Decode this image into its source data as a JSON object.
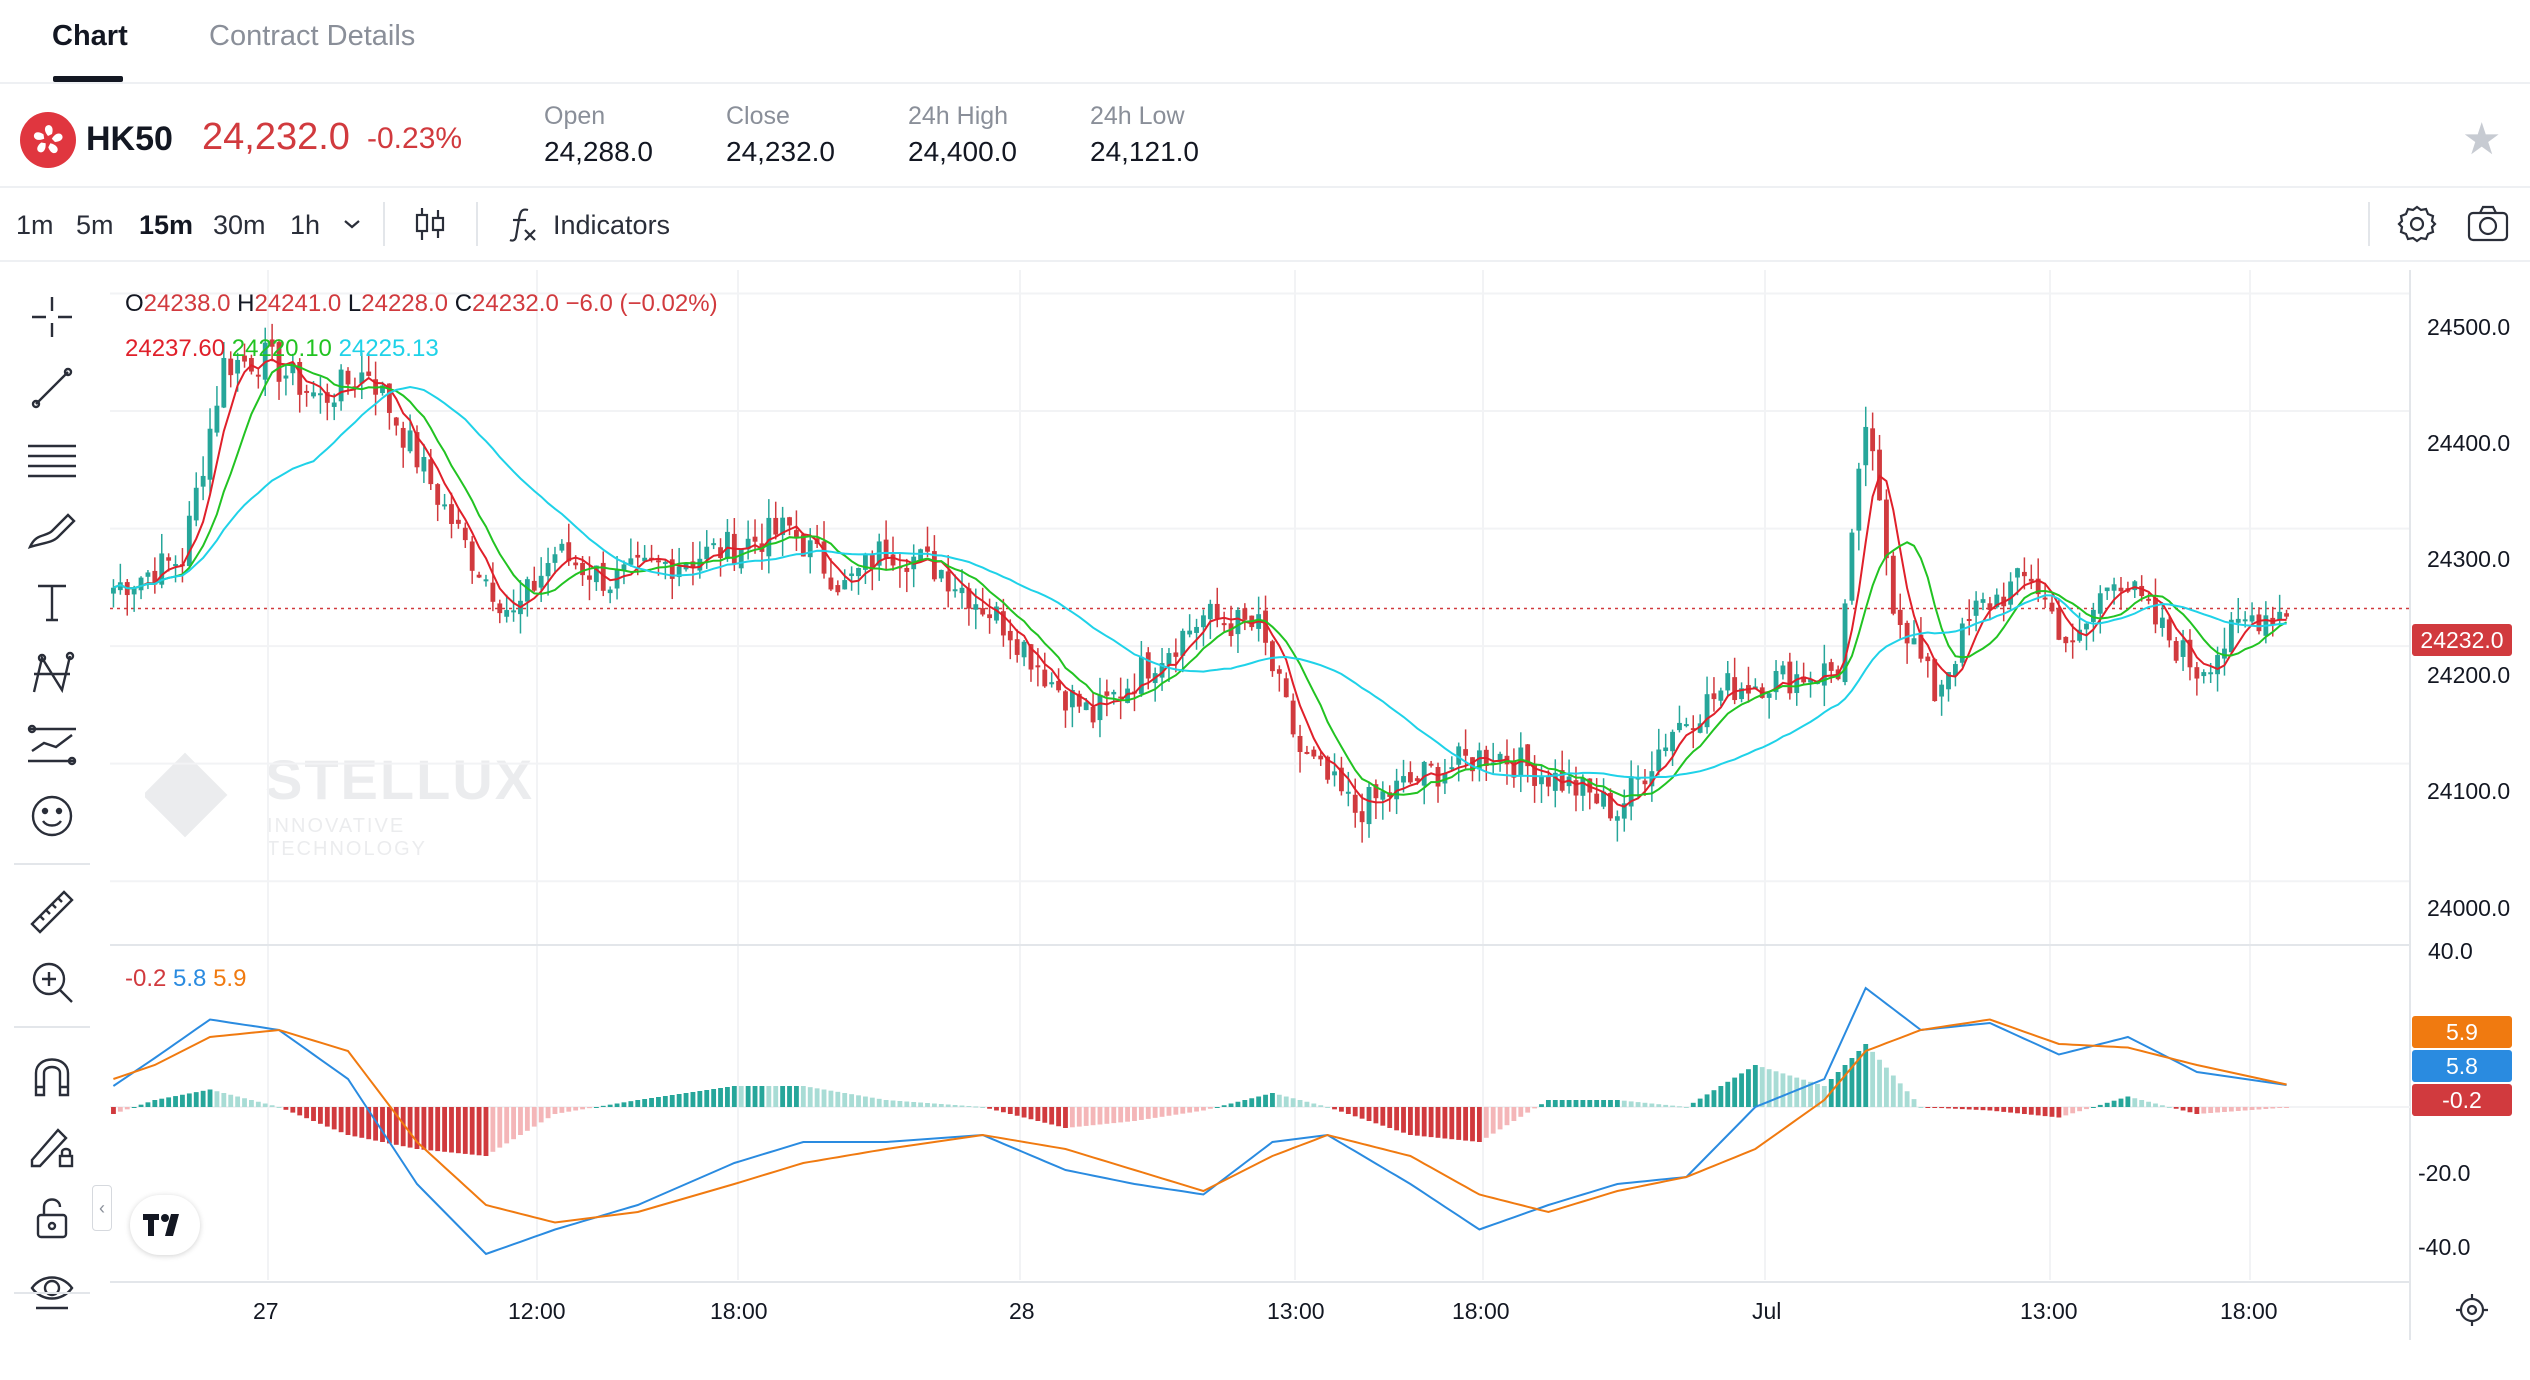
{
  "tabs": [
    {
      "label": "Chart",
      "active": true
    },
    {
      "label": "Contract Details",
      "active": false
    }
  ],
  "ticker": {
    "symbol": "HK50",
    "price": "24,232.0",
    "change": "-0.23%",
    "flag_icon": "hong-kong-flag-icon",
    "price_color": "#d13a3e",
    "stats": [
      {
        "label": "Open",
        "value": "24,288.0"
      },
      {
        "label": "Close",
        "value": "24,232.0"
      },
      {
        "label": "24h High",
        "value": "24,400.0"
      },
      {
        "label": "24h Low",
        "value": "24,121.0"
      }
    ]
  },
  "toolbar": {
    "timeframes": [
      "1m",
      "5m",
      "15m",
      "30m",
      "1h"
    ],
    "active_timeframe": "15m",
    "indicators_label": "Indicators",
    "icons": [
      "chevron-down-icon",
      "candlestick-icon",
      "function-icon",
      "settings-icon",
      "camera-icon"
    ]
  },
  "left_tools": [
    "crosshair-icon",
    "trend-line-icon",
    "horizontal-lines-icon",
    "brush-icon",
    "text-icon",
    "pattern-icon",
    "forecast-icon",
    "emoji-icon",
    "ruler-icon",
    "zoom-in-icon",
    "magnet-icon",
    "pencil-lock-icon",
    "unlock-icon",
    "eye-icon"
  ],
  "legend": {
    "ohlc": [
      {
        "key": "O",
        "value": "24238.0"
      },
      {
        "key": "H",
        "value": "24241.0"
      },
      {
        "key": "L",
        "value": "24228.0"
      },
      {
        "key": "C",
        "value": "24232.0"
      }
    ],
    "change": "−6.0 (−0.02%)",
    "ma": [
      "24237.60",
      "24220.10",
      "24225.13"
    ],
    "macd": [
      "-0.2",
      "5.8",
      "5.9"
    ]
  },
  "price_axis": {
    "labels": [
      "24500.0",
      "24400.0",
      "24300.0",
      "24200.0",
      "24100.0",
      "24000.0"
    ],
    "current_tag": "24232.0",
    "current_tag_color": "#d13a3e"
  },
  "macd_axis": {
    "labels": [
      "40.0",
      "-20.0",
      "-40.0"
    ],
    "tags": [
      {
        "value": "5.9",
        "color": "#f07a10"
      },
      {
        "value": "5.8",
        "color": "#2a8be0"
      },
      {
        "value": "-0.2",
        "color": "#d13a3e"
      }
    ]
  },
  "time_axis": [
    "27",
    "12:00",
    "18:00",
    "28",
    "13:00",
    "18:00",
    "Jul",
    "13:00",
    "18:00"
  ],
  "watermark": {
    "brand": "STELLUX",
    "tagline": "INNOVATIVE TECHNOLOGY"
  },
  "colors": {
    "up": "#26a69a",
    "down": "#d13a3e",
    "ma1": "#e0202a",
    "ma2": "#22c322",
    "ma3": "#1fd2e8",
    "dif": "#2a8be0",
    "dea": "#f07a10"
  },
  "chart_data": {
    "type": "candlestick",
    "price_range": [
      23950,
      24520
    ],
    "current_price": 24232.0,
    "anchors": [
      [
        0,
        24250
      ],
      [
        10,
        24275
      ],
      [
        16,
        24440
      ],
      [
        22,
        24445
      ],
      [
        30,
        24410
      ],
      [
        37,
        24435
      ],
      [
        44,
        24360
      ],
      [
        52,
        24275
      ],
      [
        58,
        24225
      ],
      [
        64,
        24280
      ],
      [
        72,
        24255
      ],
      [
        80,
        24270
      ],
      [
        90,
        24285
      ],
      [
        98,
        24300
      ],
      [
        106,
        24250
      ],
      [
        112,
        24285
      ],
      [
        120,
        24265
      ],
      [
        130,
        24215
      ],
      [
        136,
        24170
      ],
      [
        142,
        24140
      ],
      [
        150,
        24185
      ],
      [
        158,
        24225
      ],
      [
        166,
        24215
      ],
      [
        172,
        24110
      ],
      [
        180,
        24060
      ],
      [
        190,
        24090
      ],
      [
        200,
        24110
      ],
      [
        210,
        24085
      ],
      [
        218,
        24060
      ],
      [
        226,
        24130
      ],
      [
        234,
        24165
      ],
      [
        244,
        24175
      ],
      [
        250,
        24180
      ],
      [
        254,
        24390
      ],
      [
        258,
        24240
      ],
      [
        264,
        24160
      ],
      [
        270,
        24230
      ],
      [
        278,
        24260
      ],
      [
        284,
        24195
      ],
      [
        290,
        24265
      ],
      [
        296,
        24220
      ],
      [
        302,
        24180
      ],
      [
        310,
        24225
      ],
      [
        316,
        24232
      ]
    ],
    "candle_count": 316,
    "macd_range": [
      -48,
      42
    ],
    "macd_anchors": [
      [
        0,
        6,
        8
      ],
      [
        6,
        14,
        12
      ],
      [
        14,
        25,
        20
      ],
      [
        24,
        22,
        22
      ],
      [
        34,
        8,
        16
      ],
      [
        44,
        -22,
        -10
      ],
      [
        54,
        -42,
        -28
      ],
      [
        64,
        -35,
        -33
      ],
      [
        76,
        -28,
        -30
      ],
      [
        90,
        -16,
        -22
      ],
      [
        100,
        -10,
        -16
      ],
      [
        112,
        -10,
        -12
      ],
      [
        126,
        -8,
        -8
      ],
      [
        138,
        -18,
        -12
      ],
      [
        148,
        -22,
        -18
      ],
      [
        158,
        -25,
        -24
      ],
      [
        168,
        -10,
        -14
      ],
      [
        176,
        -8,
        -8
      ],
      [
        188,
        -22,
        -14
      ],
      [
        198,
        -35,
        -25
      ],
      [
        208,
        -28,
        -30
      ],
      [
        218,
        -22,
        -24
      ],
      [
        228,
        -20,
        -20
      ],
      [
        238,
        0,
        -12
      ],
      [
        248,
        8,
        2
      ],
      [
        254,
        34,
        16
      ],
      [
        262,
        22,
        22
      ],
      [
        272,
        24,
        25
      ],
      [
        282,
        15,
        18
      ],
      [
        292,
        20,
        17
      ],
      [
        302,
        10,
        12
      ],
      [
        316,
        6,
        6
      ]
    ]
  }
}
